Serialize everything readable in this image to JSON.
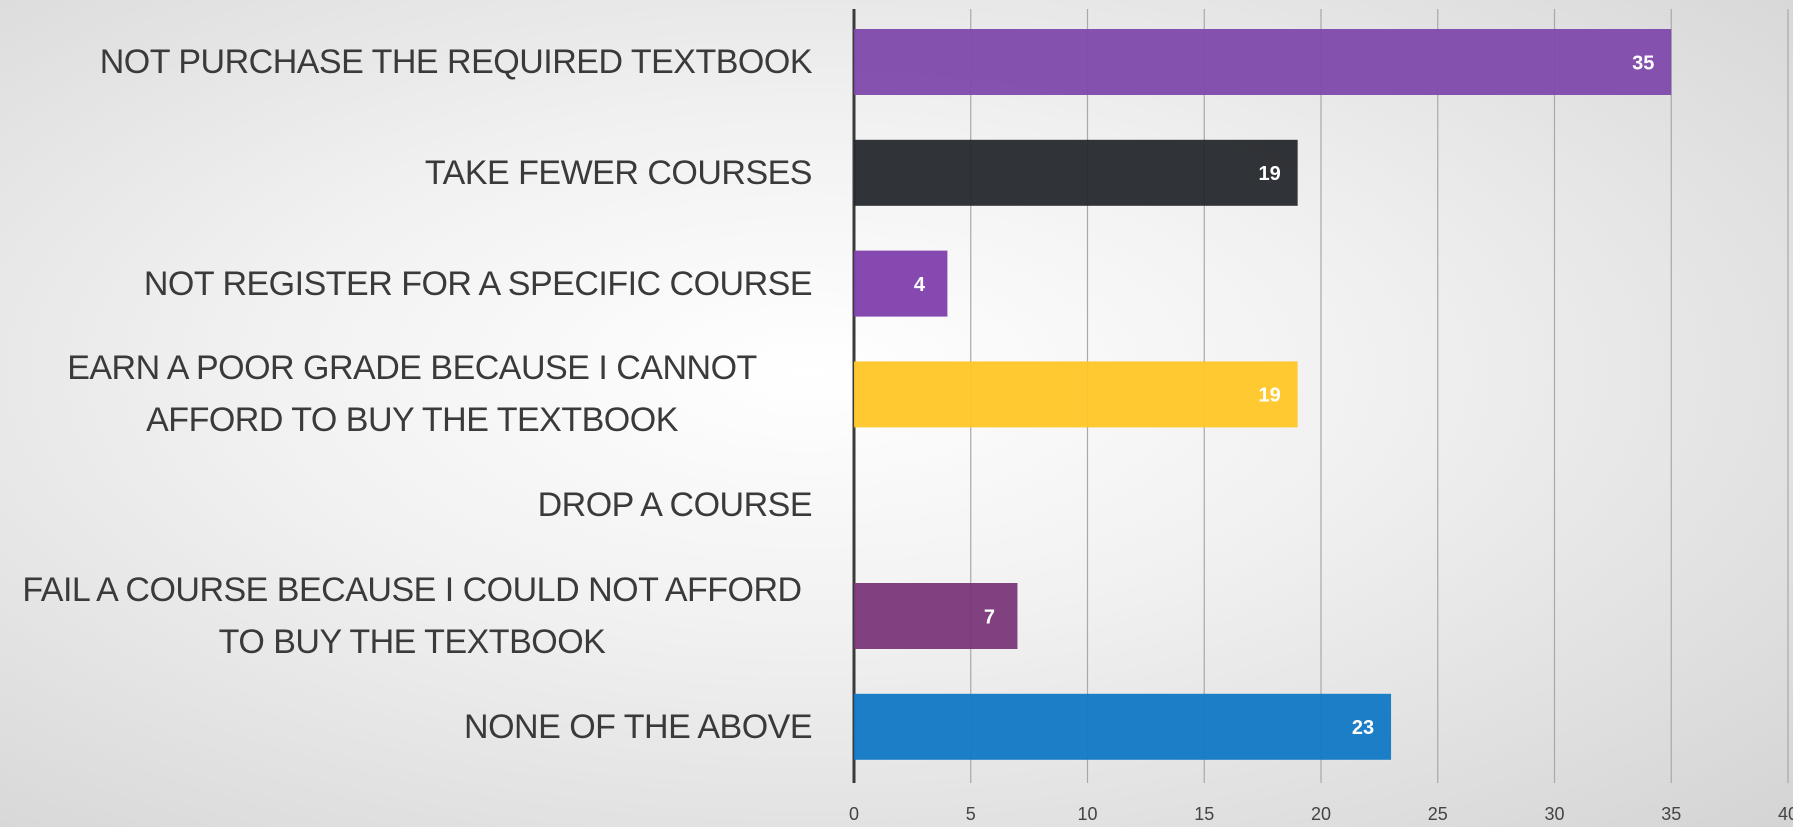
{
  "chart_data": {
    "type": "hbar",
    "categories": [
      "NOT PURCHASE THE REQUIRED TEXTBOOK",
      "TAKE FEWER COURSES",
      "NOT REGISTER FOR A SPECIFIC COURSE",
      "EARN A POOR GRADE BECAUSE I CANNOT AFFORD TO BUY THE TEXTBOOK",
      "DROP A COURSE",
      "FAIL A COURSE BECAUSE I COULD NOT AFFORD TO BUY THE TEXTBOOK",
      "NONE OF THE ABOVE"
    ],
    "values": [
      35,
      19,
      4,
      19,
      null,
      7,
      23
    ],
    "colors": [
      "#7e4aab",
      "#25282c",
      "#7f3fac",
      "#ffc627",
      null,
      "#7a3679",
      "#1278c6"
    ],
    "xlim": [
      0,
      40
    ],
    "xticks": [
      0,
      5,
      10,
      15,
      20,
      25,
      30,
      35,
      40
    ],
    "grid": true
  }
}
